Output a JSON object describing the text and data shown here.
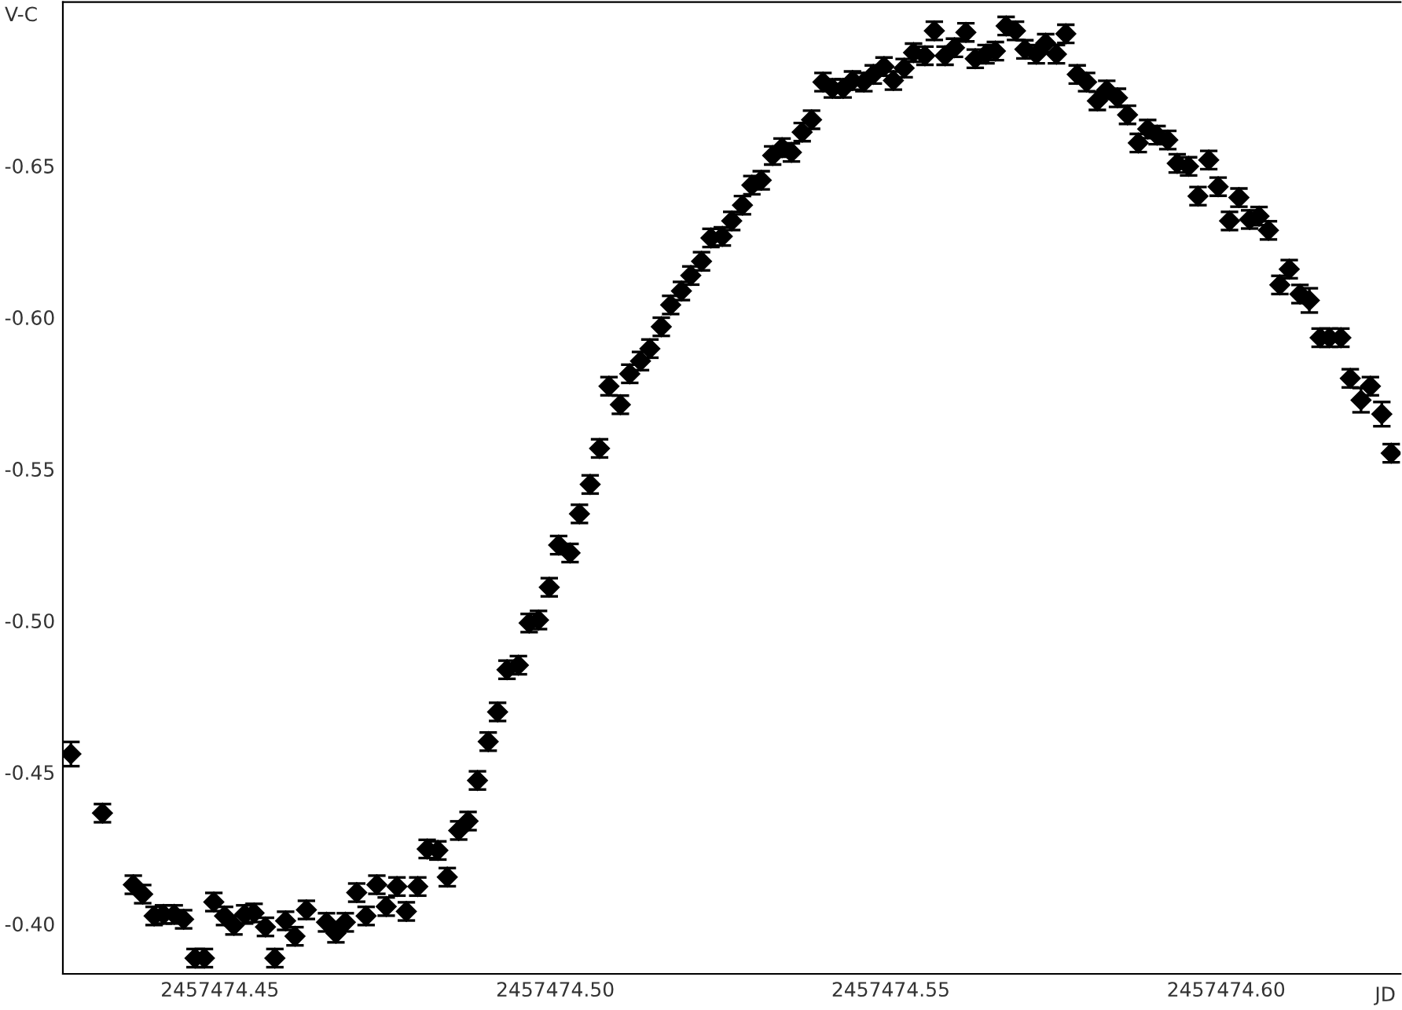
{
  "chart_data": {
    "type": "scatter",
    "xlabel": "JD",
    "ylabel": "V-C",
    "x": [
      2457474.4278,
      2457474.4325,
      2457474.4371,
      2457474.4385,
      2457474.4402,
      2457474.4416,
      2457474.4432,
      2457474.4446,
      2457474.4463,
      2457474.4477,
      2457474.4491,
      2457474.4507,
      2457474.4521,
      2457474.4537,
      2457474.4551,
      2457474.4568,
      2457474.4582,
      2457474.4598,
      2457474.4612,
      2457474.4629,
      2457474.4659,
      2457474.4673,
      2457474.4687,
      2457474.4704,
      2457474.4718,
      2457474.4734,
      2457474.4748,
      2457474.4764,
      2457474.4778,
      2457474.4795,
      2457474.4809,
      2457474.4825,
      2457474.4839,
      2457474.4856,
      2457474.487,
      2457474.4884,
      2457474.49,
      2457474.4914,
      2457474.4928,
      2457474.4945,
      2457474.4961,
      2457474.4975,
      2457474.4991,
      2457474.5005,
      2457474.5022,
      2457474.5036,
      2457474.5052,
      2457474.5066,
      2457474.508,
      2457474.5097,
      2457474.5111,
      2457474.5127,
      2457474.5141,
      2457474.5158,
      2457474.5172,
      2457474.5188,
      2457474.5202,
      2457474.5218,
      2457474.5232,
      2457474.5249,
      2457474.5263,
      2457474.5279,
      2457474.5293,
      2457474.5307,
      2457474.5324,
      2457474.5338,
      2457474.5352,
      2457474.5368,
      2457474.5382,
      2457474.5399,
      2457474.5413,
      2457474.5429,
      2457474.5443,
      2457474.546,
      2457474.5474,
      2457474.549,
      2457474.5504,
      2457474.552,
      2457474.5534,
      2457474.5551,
      2457474.5565,
      2457474.5581,
      2457474.5595,
      2457474.5612,
      2457474.5626,
      2457474.5642,
      2457474.5656,
      2457474.5672,
      2457474.5686,
      2457474.57,
      2457474.5717,
      2457474.5731,
      2457474.5747,
      2457474.5761,
      2457474.5778,
      2457474.5792,
      2457474.5808,
      2457474.5822,
      2457474.5838,
      2457474.5853,
      2457474.5869,
      2457474.5883,
      2457474.5897,
      2457474.5913,
      2457474.5927,
      2457474.5944,
      2457474.5958,
      2457474.5974,
      2457474.5988,
      2457474.6005,
      2457474.6019,
      2457474.6035,
      2457474.6049,
      2457474.6063,
      2457474.608,
      2457474.6094,
      2457474.611,
      2457474.6124,
      2457474.614,
      2457474.6154,
      2457474.6171,
      2457474.6185,
      2457474.6201,
      2457474.6215,
      2457474.6232,
      2457474.6246
    ],
    "series": [
      {
        "color": "#000000",
        "values": [
          -0.456,
          -0.4365,
          -0.4129,
          -0.4098,
          -0.4026,
          -0.4031,
          -0.4031,
          -0.4015,
          -0.3887,
          -0.3887,
          -0.4072,
          -0.4026,
          -0.3995,
          -0.4031,
          -0.4036,
          -0.399,
          -0.3887,
          -0.401,
          -0.3959,
          -0.4046,
          -0.4005,
          -0.3969,
          -0.4005,
          -0.4103,
          -0.4026,
          -0.4129,
          -0.4057,
          -0.4123,
          -0.4041,
          -0.4123,
          -0.4247,
          -0.4242,
          -0.4154,
          -0.4308,
          -0.4339,
          -0.4473,
          -0.4601,
          -0.4699,
          -0.4838,
          -0.4853,
          -0.4992,
          -0.5002,
          -0.511,
          -0.5249,
          -0.5223,
          -0.5352,
          -0.5449,
          -0.5568,
          -0.5773,
          -0.5712,
          -0.5814,
          -0.5856,
          -0.5897,
          -0.5969,
          -0.6041,
          -0.6087,
          -0.6138,
          -0.6185,
          -0.6262,
          -0.6267,
          -0.6318,
          -0.637,
          -0.6436,
          -0.6452,
          -0.6534,
          -0.656,
          -0.6544,
          -0.6611,
          -0.6652,
          -0.6776,
          -0.6755,
          -0.6755,
          -0.6781,
          -0.6776,
          -0.6801,
          -0.6827,
          -0.6781,
          -0.6822,
          -0.6873,
          -0.6863,
          -0.6945,
          -0.6863,
          -0.6889,
          -0.694,
          -0.6853,
          -0.6868,
          -0.6878,
          -0.6961,
          -0.6945,
          -0.6884,
          -0.6868,
          -0.6904,
          -0.6868,
          -0.6935,
          -0.6801,
          -0.6776,
          -0.6714,
          -0.675,
          -0.6724,
          -0.6668,
          -0.6575,
          -0.6621,
          -0.6601,
          -0.6585,
          -0.6508,
          -0.6498,
          -0.64,
          -0.6519,
          -0.6431,
          -0.6318,
          -0.6395,
          -0.6323,
          -0.6334,
          -0.6287,
          -0.6107,
          -0.6159,
          -0.6077,
          -0.6056,
          -0.5933,
          -0.5933,
          -0.5933,
          -0.5799,
          -0.5727,
          -0.5773,
          -0.5681,
          -0.5552
        ],
        "errors": [
          0.004,
          0.003,
          0.003,
          0.003,
          0.003,
          0.003,
          0.003,
          0.003,
          0.003,
          0.003,
          0.003,
          0.003,
          0.003,
          0.003,
          0.003,
          0.003,
          0.003,
          0.003,
          0.003,
          0.003,
          0.003,
          0.003,
          0.003,
          0.003,
          0.003,
          0.003,
          0.003,
          0.003,
          0.003,
          0.003,
          0.003,
          0.003,
          0.003,
          0.003,
          0.003,
          0.003,
          0.003,
          0.003,
          0.003,
          0.003,
          0.003,
          0.003,
          0.003,
          0.003,
          0.003,
          0.003,
          0.003,
          0.003,
          0.003,
          0.003,
          0.003,
          0.003,
          0.003,
          0.003,
          0.003,
          0.003,
          0.003,
          0.003,
          0.003,
          0.003,
          0.003,
          0.003,
          0.003,
          0.003,
          0.003,
          0.003,
          0.003,
          0.003,
          0.003,
          0.003,
          0.003,
          0.003,
          0.003,
          0.003,
          0.003,
          0.003,
          0.003,
          0.003,
          0.003,
          0.003,
          0.003,
          0.003,
          0.003,
          0.003,
          0.003,
          0.003,
          0.003,
          0.003,
          0.003,
          0.003,
          0.003,
          0.003,
          0.003,
          0.003,
          0.003,
          0.003,
          0.003,
          0.003,
          0.003,
          0.003,
          0.003,
          0.003,
          0.003,
          0.003,
          0.003,
          0.003,
          0.003,
          0.003,
          0.003,
          0.003,
          0.003,
          0.003,
          0.003,
          0.003,
          0.003,
          0.003,
          0.003,
          0.004,
          0.003,
          0.003,
          0.003,
          0.003,
          0.004,
          0.003,
          0.004,
          0.003
        ]
      }
    ],
    "marker": "diamond",
    "grid": false,
    "xlim": [
      2457474.4266,
      2457474.626
    ],
    "xticks": [
      {
        "value": 2457474.45,
        "label": "2457474.45"
      },
      {
        "value": 2457474.5,
        "label": "2457474.50"
      },
      {
        "value": 2457474.55,
        "label": "2457474.55"
      },
      {
        "value": 2457474.6,
        "label": "2457474.60"
      }
    ],
    "ylim": [
      -0.3835,
      -0.704
    ],
    "yticks": [
      {
        "value": -0.4,
        "label": "-0.40"
      },
      {
        "value": -0.45,
        "label": "-0.45"
      },
      {
        "value": -0.5,
        "label": "-0.50"
      },
      {
        "value": -0.55,
        "label": "-0.55"
      },
      {
        "value": -0.6,
        "label": "-0.60"
      },
      {
        "value": -0.65,
        "label": "-0.65"
      }
    ]
  }
}
